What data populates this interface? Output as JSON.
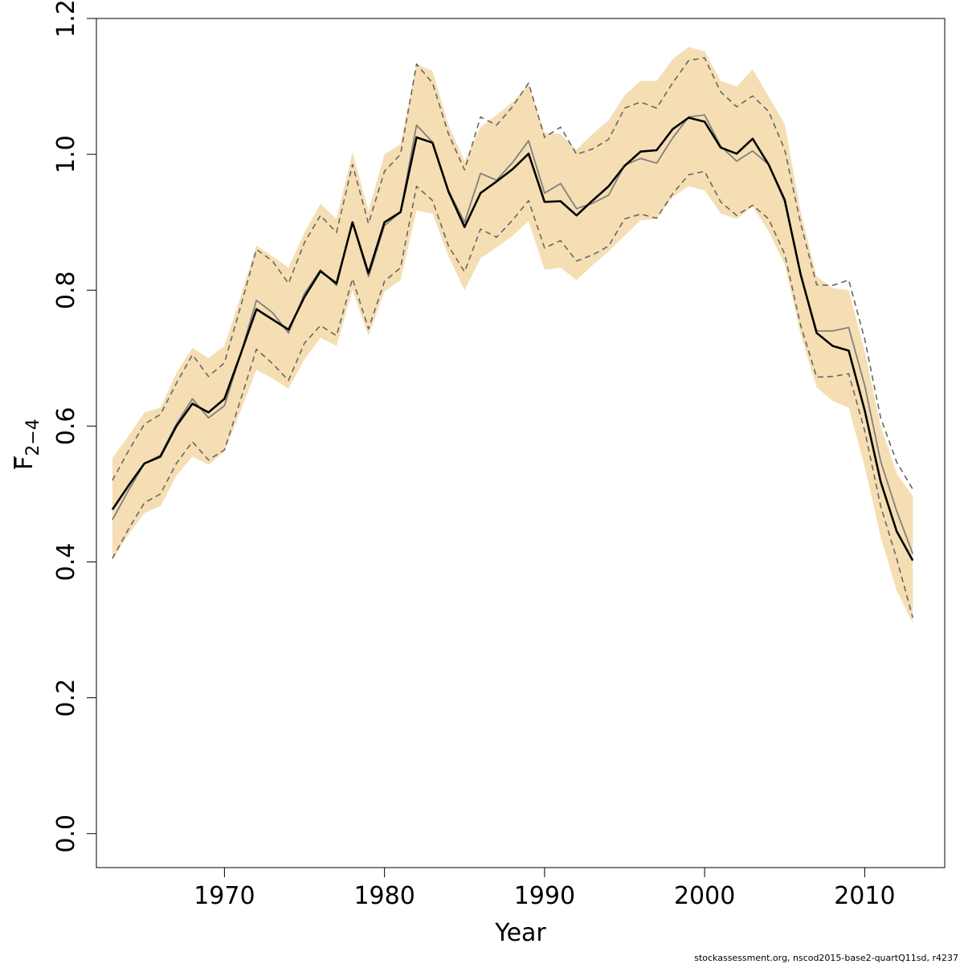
{
  "chart_data": {
    "type": "line",
    "title": "",
    "xlabel": "Year",
    "ylabel": {
      "symbol": "F",
      "subscript": "2−4"
    },
    "xlim": [
      1962,
      2015
    ],
    "ylim": [
      -0.05,
      1.2
    ],
    "xticks": [
      1970,
      1980,
      1990,
      2000,
      2010
    ],
    "yticks": [
      0.0,
      0.2,
      0.4,
      0.6,
      0.8,
      1.0,
      1.2
    ],
    "ytick_labels": [
      "0.0",
      "0.2",
      "0.4",
      "0.6",
      "0.8",
      "1.0",
      "1.2"
    ],
    "grid": false,
    "legend": "none",
    "colors": {
      "band": "#f5deb3",
      "estimate": "#000000",
      "previous": "#808080",
      "previous_ci": "#666666",
      "axis": "#000000"
    },
    "x": [
      1963,
      1964,
      1965,
      1966,
      1967,
      1968,
      1969,
      1970,
      1971,
      1972,
      1973,
      1974,
      1975,
      1976,
      1977,
      1978,
      1979,
      1980,
      1981,
      1982,
      1983,
      1984,
      1985,
      1986,
      1987,
      1988,
      1989,
      1990,
      1991,
      1992,
      1993,
      1994,
      1995,
      1996,
      1997,
      1998,
      1999,
      2000,
      2001,
      2002,
      2003,
      2004,
      2005,
      2006,
      2007,
      2008,
      2009,
      2010,
      2011,
      2012,
      2013
    ],
    "series": [
      {
        "role": "estimate",
        "values": [
          0.477,
          0.512,
          0.545,
          0.555,
          0.6,
          0.633,
          0.62,
          0.64,
          0.705,
          0.772,
          0.757,
          0.742,
          0.79,
          0.828,
          0.81,
          0.9,
          0.825,
          0.9,
          0.915,
          1.025,
          1.017,
          0.945,
          0.893,
          0.943,
          0.96,
          0.978,
          1.001,
          0.93,
          0.931,
          0.91,
          0.932,
          0.953,
          0.983,
          1.004,
          1.006,
          1.037,
          1.054,
          1.048,
          1.01,
          1.001,
          1.023,
          0.985,
          0.933,
          0.823,
          0.737,
          0.718,
          0.711,
          0.623,
          0.518,
          0.445,
          0.402
        ]
      },
      {
        "role": "previous",
        "values": [
          0.462,
          0.505,
          0.545,
          0.557,
          0.603,
          0.64,
          0.612,
          0.63,
          0.705,
          0.785,
          0.767,
          0.737,
          0.795,
          0.83,
          0.807,
          0.9,
          0.82,
          0.895,
          0.915,
          1.043,
          1.018,
          0.947,
          0.9,
          0.972,
          0.962,
          0.988,
          1.02,
          0.943,
          0.957,
          0.92,
          0.928,
          0.94,
          0.984,
          0.994,
          0.987,
          1.024,
          1.055,
          1.058,
          1.012,
          0.99,
          1.005,
          0.985,
          0.93,
          0.822,
          0.74,
          0.74,
          0.745,
          0.66,
          0.548,
          0.475,
          0.412
        ]
      },
      {
        "role": "previous_lower",
        "values": [
          0.405,
          0.448,
          0.487,
          0.5,
          0.545,
          0.577,
          0.55,
          0.565,
          0.638,
          0.713,
          0.692,
          0.667,
          0.722,
          0.748,
          0.733,
          0.817,
          0.743,
          0.813,
          0.833,
          0.953,
          0.932,
          0.865,
          0.827,
          0.89,
          0.878,
          0.903,
          0.932,
          0.862,
          0.873,
          0.843,
          0.852,
          0.865,
          0.905,
          0.912,
          0.906,
          0.942,
          0.97,
          0.975,
          0.93,
          0.91,
          0.925,
          0.905,
          0.853,
          0.748,
          0.672,
          0.673,
          0.677,
          0.593,
          0.482,
          0.405,
          0.318
        ]
      },
      {
        "role": "previous_upper",
        "values": [
          0.52,
          0.563,
          0.603,
          0.617,
          0.663,
          0.705,
          0.673,
          0.693,
          0.775,
          0.86,
          0.843,
          0.81,
          0.87,
          0.91,
          0.885,
          0.985,
          0.898,
          0.975,
          1.0,
          1.133,
          1.105,
          1.03,
          0.977,
          1.055,
          1.043,
          1.07,
          1.105,
          1.025,
          1.04,
          1.0,
          1.008,
          1.022,
          1.068,
          1.077,
          1.068,
          1.105,
          1.138,
          1.142,
          1.092,
          1.07,
          1.086,
          1.063,
          1.007,
          0.898,
          0.808,
          0.807,
          0.815,
          0.728,
          0.612,
          0.547,
          0.507
        ]
      },
      {
        "role": "band_lower",
        "values": [
          0.403,
          0.44,
          0.472,
          0.482,
          0.527,
          0.555,
          0.543,
          0.562,
          0.622,
          0.683,
          0.67,
          0.655,
          0.698,
          0.73,
          0.718,
          0.8,
          0.733,
          0.798,
          0.815,
          0.917,
          0.913,
          0.85,
          0.8,
          0.847,
          0.863,
          0.88,
          0.902,
          0.83,
          0.833,
          0.815,
          0.837,
          0.857,
          0.88,
          0.903,
          0.905,
          0.937,
          0.953,
          0.947,
          0.913,
          0.905,
          0.923,
          0.887,
          0.838,
          0.735,
          0.657,
          0.637,
          0.627,
          0.54,
          0.437,
          0.358,
          0.31
        ]
      },
      {
        "role": "band_upper",
        "values": [
          0.553,
          0.585,
          0.62,
          0.627,
          0.678,
          0.715,
          0.7,
          0.718,
          0.79,
          0.866,
          0.85,
          0.833,
          0.885,
          0.927,
          0.905,
          1.003,
          0.917,
          1.0,
          1.015,
          1.133,
          1.123,
          1.043,
          0.99,
          1.04,
          1.058,
          1.077,
          1.103,
          1.032,
          1.03,
          1.007,
          1.03,
          1.05,
          1.087,
          1.108,
          1.108,
          1.14,
          1.158,
          1.152,
          1.108,
          1.1,
          1.125,
          1.085,
          1.045,
          0.915,
          0.82,
          0.803,
          0.8,
          0.71,
          0.6,
          0.53,
          0.497
        ]
      }
    ]
  },
  "footnote": "stockassessment.org, nscod2015-base2-quartQ11sd, r4237"
}
